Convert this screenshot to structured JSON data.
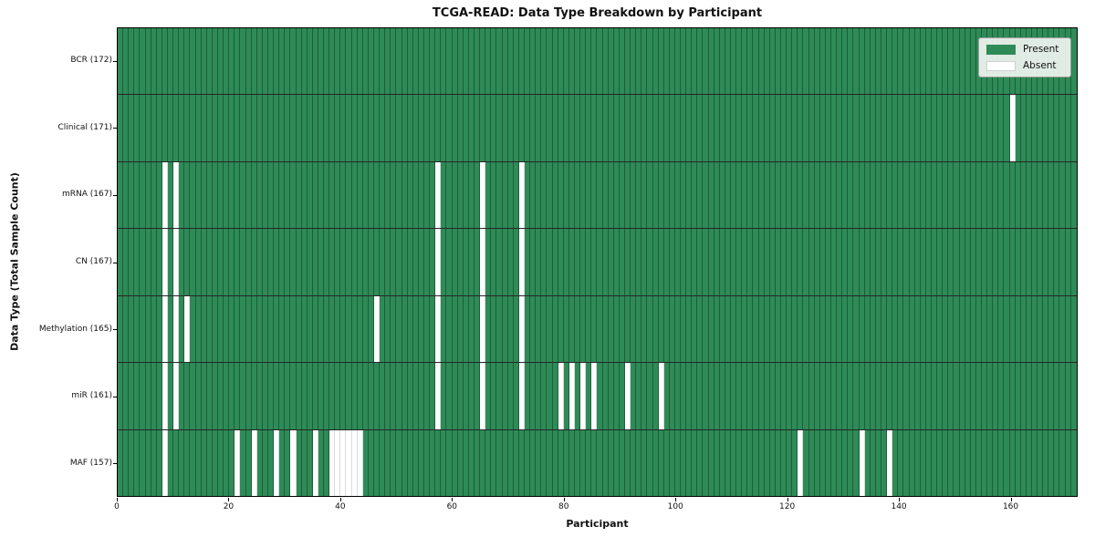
{
  "chart_data": {
    "type": "heatmap",
    "title": "TCGA-READ: Data Type Breakdown by Participant",
    "xlabel": "Participant",
    "ylabel": "Data Type (Total Sample Count)",
    "n_participants": 172,
    "x_ticks": [
      0,
      20,
      40,
      60,
      80,
      100,
      120,
      140,
      160
    ],
    "legend": [
      {
        "label": "Present",
        "color": "#2e8b57"
      },
      {
        "label": "Absent",
        "color": "#ffffff"
      }
    ],
    "colors": {
      "present": "#2e8b57",
      "absent": "#ffffff",
      "grid_on_green": "#1d5e3a",
      "grid_on_white": "#d8dcd8",
      "row_separator": "#262626"
    },
    "rows": [
      {
        "data_type": "BCR",
        "count": 172,
        "label": "BCR (172)",
        "absent_participants": []
      },
      {
        "data_type": "Clinical",
        "count": 171,
        "label": "Clinical (171)",
        "absent_participants": [
          160
        ]
      },
      {
        "data_type": "mRNA",
        "count": 167,
        "label": "mRNA (167)",
        "absent_participants": [
          8,
          10,
          57,
          65,
          72
        ]
      },
      {
        "data_type": "CN",
        "count": 167,
        "label": "CN (167)",
        "absent_participants": [
          8,
          10,
          57,
          65,
          72
        ]
      },
      {
        "data_type": "Methylation",
        "count": 165,
        "label": "Methylation (165)",
        "absent_participants": [
          8,
          10,
          12,
          46,
          57,
          65,
          72
        ]
      },
      {
        "data_type": "miR",
        "count": 161,
        "label": "miR (161)",
        "absent_participants": [
          8,
          10,
          57,
          65,
          72,
          79,
          81,
          83,
          85,
          91,
          97
        ]
      },
      {
        "data_type": "MAF",
        "count": 157,
        "label": "MAF (157)",
        "absent_participants": [
          8,
          21,
          24,
          28,
          31,
          35,
          38,
          39,
          40,
          41,
          42,
          43,
          122,
          133,
          138
        ]
      }
    ]
  }
}
